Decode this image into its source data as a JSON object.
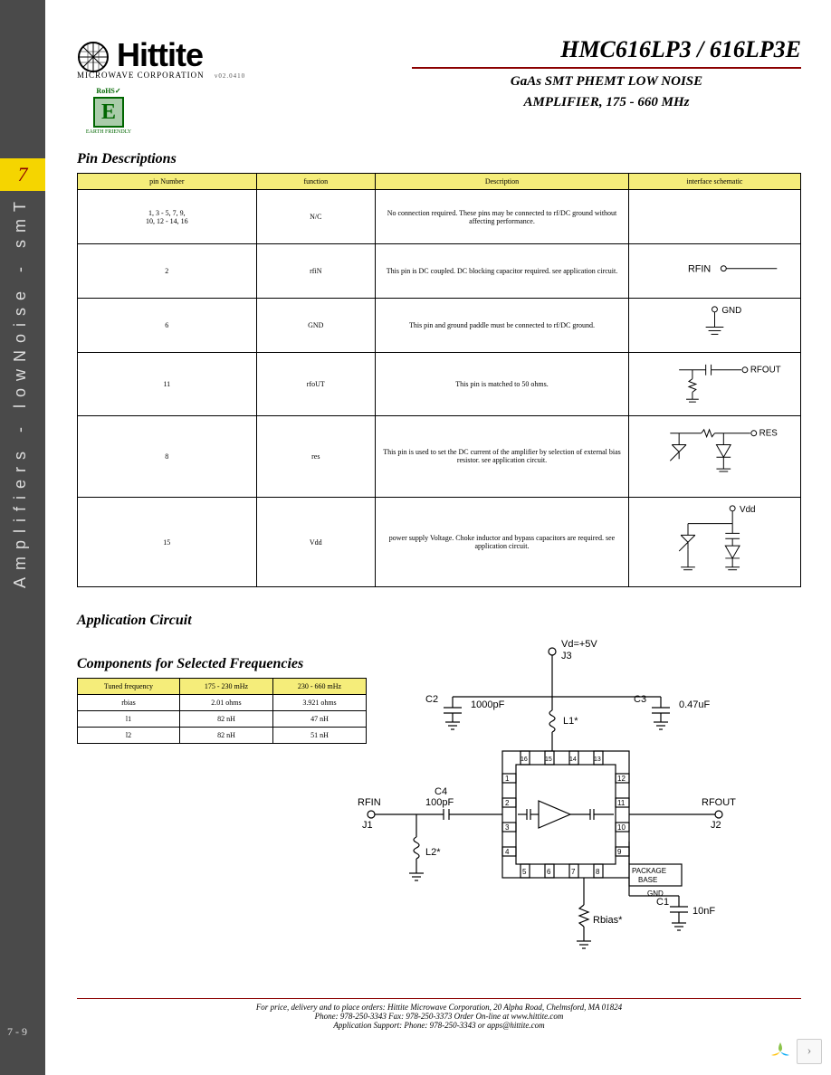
{
  "sidebar": {
    "tab": "7",
    "vertical_text": "Amplifiers - lowNoise - smT",
    "pagenum": "7 - 9"
  },
  "logo": {
    "name": "Hittite",
    "sub": "MICROWAVE CORPORATION",
    "rev": "v02.0410"
  },
  "rohs": {
    "top": "RoHS✓",
    "e": "E",
    "bot": "EARTH FRIENDLY"
  },
  "title": {
    "part": "HMC616LP3 / 616LP3E",
    "line1": "GaAs SMT PHEMT LOW NOISE",
    "line2": "AMPLIFIER, 175 - 660 MHz"
  },
  "sections": {
    "pins": "Pin Descriptions",
    "app": "Application Circuit",
    "freq": "Components for Selected Frequencies"
  },
  "pins": {
    "headers": [
      "pin Number",
      "function",
      "Description",
      "interface schematic"
    ],
    "rows": [
      {
        "num": "1, 3 - 5, 7, 9,\n10, 12 - 14, 16",
        "func": "N/C",
        "desc": "No connection required. These pins may be connected to rf/DC ground without affecting performance.",
        "schem": "none"
      },
      {
        "num": "2",
        "func": "rfiN",
        "desc": "This pin is DC coupled. DC blocking capacitor required. see application circuit.",
        "schem": "rfin"
      },
      {
        "num": "6",
        "func": "GND",
        "desc": "This pin and ground paddle must be connected to rf/DC ground.",
        "schem": "gnd"
      },
      {
        "num": "11",
        "func": "rfoUT",
        "desc": "This pin is matched to 50 ohms.",
        "schem": "rfout"
      },
      {
        "num": "8",
        "func": "res",
        "desc": "This pin is used to set the DC current of the amplifier by selection of external bias resistor. see application circuit.",
        "schem": "res"
      },
      {
        "num": "15",
        "func": "Vdd",
        "desc": "power supply Voltage. Choke inductor and bypass capacitors are required. see application circuit.",
        "schem": "vdd"
      }
    ]
  },
  "freq": {
    "headers": [
      "Tuned frequency",
      "175 - 230 mHz",
      "230 - 660 mHz"
    ],
    "rows": [
      [
        "rbias",
        "2.01 ohms",
        "3.921 ohms"
      ],
      [
        "l1",
        "82 nH",
        "47 nH"
      ],
      [
        "l2",
        "82 nH",
        "51 nH"
      ]
    ]
  },
  "circuit": {
    "labels": {
      "vd": "Vd=+5V",
      "j3": "J3",
      "c2": "C2",
      "c2v": "1000pF",
      "c3": "C3",
      "c3v": "0.47uF",
      "l1": "L1*",
      "c4": "C4",
      "c4v": "100pF",
      "rfin": "RFIN",
      "j1": "J1",
      "rfout": "RFOUT",
      "j2": "J2",
      "l2": "L2*",
      "rbias": "Rbias*",
      "c1": "C1",
      "c1v": "10nF",
      "pkg1": "PACKAGE",
      "pkg2": "BASE",
      "gnd": "GND",
      "pins": [
        "1",
        "2",
        "3",
        "4",
        "5",
        "6",
        "7",
        "8",
        "9",
        "10",
        "11",
        "12",
        "13",
        "14",
        "15",
        "16"
      ]
    }
  },
  "footer": {
    "line1": "For price, delivery and to place orders: Hittite Microwave Corporation, 20 Alpha Road, Chelmsford, MA 01824",
    "line2": "Phone: 978-250-3343   Fax: 978-250-3373   Order On-line at www.hittite.com",
    "line3": "Application Support: Phone: 978-250-3343  or  apps@hittite.com"
  },
  "colors": {
    "sidebar": "#4a4a4a",
    "tab": "#f5d500",
    "tab_text": "#8b0000",
    "hr": "#8b0000",
    "table_header": "#f5ed7a"
  }
}
